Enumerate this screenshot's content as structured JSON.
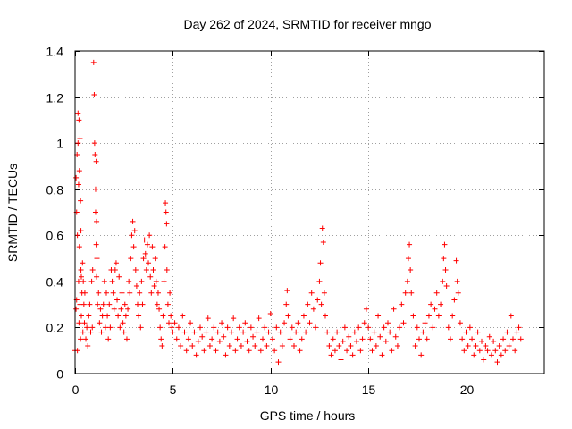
{
  "chart_data": {
    "type": "scatter",
    "title": "Day 262 of 2024, SRMTID for receiver mngo",
    "xlabel": "GPS time / hours",
    "ylabel": "SRMTID / TECUs",
    "xlim": [
      0,
      24
    ],
    "ylim": [
      0,
      1.4
    ],
    "xticks": [
      0,
      5,
      10,
      15,
      20
    ],
    "xtick_labels": [
      "0",
      "5",
      "10",
      "15",
      "20"
    ],
    "yticks": [
      0,
      0.2,
      0.4,
      0.6,
      0.8,
      1,
      1.2,
      1.4
    ],
    "ytick_labels": [
      "0",
      "0.2",
      "0.4",
      "0.6",
      "0.8",
      "1",
      "1.2",
      "1.4"
    ],
    "grid": true,
    "marker": "+",
    "series": [
      {
        "name": "SRMTID",
        "color": "#ff0000",
        "points": [
          [
            0.0,
            0.1
          ],
          [
            0.05,
            0.28
          ],
          [
            0.05,
            0.85
          ],
          [
            0.08,
            0.32
          ],
          [
            0.08,
            0.7
          ],
          [
            0.1,
            0.95
          ],
          [
            0.12,
            0.6
          ],
          [
            0.12,
            0.1
          ],
          [
            0.15,
            1.0
          ],
          [
            0.15,
            1.13
          ],
          [
            0.18,
            0.82
          ],
          [
            0.18,
            0.4
          ],
          [
            0.2,
            1.1
          ],
          [
            0.2,
            0.22
          ],
          [
            0.22,
            0.88
          ],
          [
            0.22,
            0.55
          ],
          [
            0.25,
            1.02
          ],
          [
            0.25,
            0.3
          ],
          [
            0.28,
            0.75
          ],
          [
            0.28,
            0.15
          ],
          [
            0.3,
            0.62
          ],
          [
            0.3,
            0.45
          ],
          [
            0.32,
            0.42
          ],
          [
            0.32,
            0.25
          ],
          [
            0.35,
            0.35
          ],
          [
            0.38,
            0.48
          ],
          [
            0.4,
            0.18
          ],
          [
            0.42,
            0.4
          ],
          [
            0.45,
            0.3
          ],
          [
            0.48,
            0.22
          ],
          [
            0.5,
            0.35
          ],
          [
            0.55,
            0.15
          ],
          [
            0.6,
            0.2
          ],
          [
            0.65,
            0.12
          ],
          [
            0.7,
            0.25
          ],
          [
            0.75,
            0.3
          ],
          [
            0.8,
            0.18
          ],
          [
            0.85,
            0.4
          ],
          [
            0.88,
            0.2
          ],
          [
            0.9,
            0.45
          ],
          [
            0.95,
            1.35
          ],
          [
            0.98,
            1.21
          ],
          [
            1.0,
            1.0
          ],
          [
            1.02,
            0.95
          ],
          [
            1.05,
            0.8
          ],
          [
            1.05,
            0.7
          ],
          [
            1.08,
            0.92
          ],
          [
            1.08,
            0.56
          ],
          [
            1.1,
            0.66
          ],
          [
            1.1,
            0.42
          ],
          [
            1.12,
            0.5
          ],
          [
            1.15,
            0.3
          ],
          [
            1.2,
            0.35
          ],
          [
            1.25,
            0.22
          ],
          [
            1.3,
            0.28
          ],
          [
            1.35,
            0.18
          ],
          [
            1.4,
            0.25
          ],
          [
            1.45,
            0.3
          ],
          [
            1.5,
            0.4
          ],
          [
            1.55,
            0.2
          ],
          [
            1.6,
            0.35
          ],
          [
            1.65,
            0.25
          ],
          [
            1.7,
            0.15
          ],
          [
            1.75,
            0.3
          ],
          [
            1.8,
            0.2
          ],
          [
            1.85,
            0.45
          ],
          [
            1.9,
            0.4
          ],
          [
            1.95,
            0.35
          ],
          [
            2.0,
            0.28
          ],
          [
            2.05,
            0.45
          ],
          [
            2.1,
            0.48
          ],
          [
            2.15,
            0.32
          ],
          [
            2.2,
            0.25
          ],
          [
            2.25,
            0.42
          ],
          [
            2.3,
            0.2
          ],
          [
            2.35,
            0.28
          ],
          [
            2.4,
            0.35
          ],
          [
            2.45,
            0.22
          ],
          [
            2.5,
            0.18
          ],
          [
            2.55,
            0.3
          ],
          [
            2.6,
            0.25
          ],
          [
            2.65,
            0.15
          ],
          [
            2.7,
            0.28
          ],
          [
            2.75,
            0.4
          ],
          [
            2.8,
            0.35
          ],
          [
            2.85,
            0.5
          ],
          [
            2.9,
            0.6
          ],
          [
            2.95,
            0.66
          ],
          [
            3.0,
            0.55
          ],
          [
            3.05,
            0.62
          ],
          [
            3.1,
            0.45
          ],
          [
            3.15,
            0.38
          ],
          [
            3.2,
            0.3
          ],
          [
            3.25,
            0.25
          ],
          [
            3.3,
            0.35
          ],
          [
            3.35,
            0.2
          ],
          [
            3.4,
            0.4
          ],
          [
            3.45,
            0.3
          ],
          [
            3.5,
            0.5
          ],
          [
            3.55,
            0.58
          ],
          [
            3.6,
            0.52
          ],
          [
            3.65,
            0.45
          ],
          [
            3.7,
            0.56
          ],
          [
            3.75,
            0.48
          ],
          [
            3.8,
            0.6
          ],
          [
            3.85,
            0.42
          ],
          [
            3.9,
            0.35
          ],
          [
            3.95,
            0.55
          ],
          [
            4.0,
            0.45
          ],
          [
            4.05,
            0.38
          ],
          [
            4.1,
            0.5
          ],
          [
            4.15,
            0.4
          ],
          [
            4.2,
            0.3
          ],
          [
            4.25,
            0.35
          ],
          [
            4.3,
            0.28
          ],
          [
            4.35,
            0.2
          ],
          [
            4.4,
            0.15
          ],
          [
            4.45,
            0.12
          ],
          [
            4.5,
            0.25
          ],
          [
            4.55,
            0.4
          ],
          [
            4.6,
            0.55
          ],
          [
            4.62,
            0.74
          ],
          [
            4.65,
            0.7
          ],
          [
            4.68,
            0.65
          ],
          [
            4.7,
            0.45
          ],
          [
            4.75,
            0.3
          ],
          [
            4.8,
            0.22
          ],
          [
            4.85,
            0.35
          ],
          [
            4.9,
            0.25
          ],
          [
            4.95,
            0.2
          ],
          [
            5.0,
            0.18
          ],
          [
            5.1,
            0.22
          ],
          [
            5.2,
            0.15
          ],
          [
            5.3,
            0.2
          ],
          [
            5.4,
            0.12
          ],
          [
            5.5,
            0.25
          ],
          [
            5.6,
            0.18
          ],
          [
            5.7,
            0.1
          ],
          [
            5.8,
            0.15
          ],
          [
            5.9,
            0.22
          ],
          [
            6.0,
            0.12
          ],
          [
            6.1,
            0.18
          ],
          [
            6.2,
            0.08
          ],
          [
            6.3,
            0.14
          ],
          [
            6.4,
            0.2
          ],
          [
            6.5,
            0.16
          ],
          [
            6.6,
            0.1
          ],
          [
            6.7,
            0.18
          ],
          [
            6.8,
            0.24
          ],
          [
            6.9,
            0.12
          ],
          [
            7.0,
            0.15
          ],
          [
            7.1,
            0.2
          ],
          [
            7.2,
            0.1
          ],
          [
            7.3,
            0.18
          ],
          [
            7.4,
            0.14
          ],
          [
            7.5,
            0.22
          ],
          [
            7.6,
            0.16
          ],
          [
            7.7,
            0.08
          ],
          [
            7.8,
            0.2
          ],
          [
            7.9,
            0.12
          ],
          [
            8.0,
            0.18
          ],
          [
            8.1,
            0.24
          ],
          [
            8.2,
            0.1
          ],
          [
            8.3,
            0.15
          ],
          [
            8.4,
            0.2
          ],
          [
            8.5,
            0.12
          ],
          [
            8.6,
            0.18
          ],
          [
            8.7,
            0.22
          ],
          [
            8.8,
            0.14
          ],
          [
            8.9,
            0.1
          ],
          [
            9.0,
            0.2
          ],
          [
            9.1,
            0.16
          ],
          [
            9.2,
            0.12
          ],
          [
            9.3,
            0.18
          ],
          [
            9.4,
            0.24
          ],
          [
            9.5,
            0.1
          ],
          [
            9.6,
            0.15
          ],
          [
            9.7,
            0.2
          ],
          [
            9.8,
            0.12
          ],
          [
            9.9,
            0.18
          ],
          [
            10.0,
            0.26
          ],
          [
            10.1,
            0.15
          ],
          [
            10.2,
            0.1
          ],
          [
            10.3,
            0.2
          ],
          [
            10.4,
            0.05
          ],
          [
            10.5,
            0.18
          ],
          [
            10.6,
            0.12
          ],
          [
            10.7,
            0.22
          ],
          [
            10.8,
            0.3
          ],
          [
            10.85,
            0.36
          ],
          [
            10.9,
            0.25
          ],
          [
            11.0,
            0.15
          ],
          [
            11.1,
            0.2
          ],
          [
            11.2,
            0.12
          ],
          [
            11.3,
            0.18
          ],
          [
            11.4,
            0.22
          ],
          [
            11.5,
            0.1
          ],
          [
            11.6,
            0.15
          ],
          [
            11.7,
            0.25
          ],
          [
            11.8,
            0.18
          ],
          [
            11.9,
            0.3
          ],
          [
            12.0,
            0.22
          ],
          [
            12.1,
            0.35
          ],
          [
            12.2,
            0.28
          ],
          [
            12.3,
            0.2
          ],
          [
            12.4,
            0.32
          ],
          [
            12.5,
            0.4
          ],
          [
            12.55,
            0.48
          ],
          [
            12.6,
            0.3
          ],
          [
            12.65,
            0.63
          ],
          [
            12.7,
            0.57
          ],
          [
            12.75,
            0.35
          ],
          [
            12.8,
            0.25
          ],
          [
            12.9,
            0.18
          ],
          [
            13.0,
            0.12
          ],
          [
            13.1,
            0.08
          ],
          [
            13.2,
            0.15
          ],
          [
            13.3,
            0.1
          ],
          [
            13.4,
            0.18
          ],
          [
            13.5,
            0.12
          ],
          [
            13.6,
            0.06
          ],
          [
            13.7,
            0.14
          ],
          [
            13.8,
            0.2
          ],
          [
            13.9,
            0.1
          ],
          [
            14.0,
            0.16
          ],
          [
            14.1,
            0.12
          ],
          [
            14.2,
            0.08
          ],
          [
            14.3,
            0.18
          ],
          [
            14.4,
            0.14
          ],
          [
            14.5,
            0.2
          ],
          [
            14.6,
            0.1
          ],
          [
            14.7,
            0.15
          ],
          [
            14.8,
            0.22
          ],
          [
            14.9,
            0.28
          ],
          [
            15.0,
            0.2
          ],
          [
            15.1,
            0.15
          ],
          [
            15.2,
            0.1
          ],
          [
            15.3,
            0.18
          ],
          [
            15.4,
            0.12
          ],
          [
            15.5,
            0.25
          ],
          [
            15.6,
            0.16
          ],
          [
            15.7,
            0.08
          ],
          [
            15.8,
            0.2
          ],
          [
            15.9,
            0.14
          ],
          [
            16.0,
            0.22
          ],
          [
            16.1,
            0.18
          ],
          [
            16.2,
            0.1
          ],
          [
            16.3,
            0.28
          ],
          [
            16.4,
            0.16
          ],
          [
            16.5,
            0.12
          ],
          [
            16.6,
            0.2
          ],
          [
            16.7,
            0.3
          ],
          [
            16.8,
            0.22
          ],
          [
            16.9,
            0.35
          ],
          [
            17.0,
            0.4
          ],
          [
            17.05,
            0.5
          ],
          [
            17.1,
            0.56
          ],
          [
            17.15,
            0.45
          ],
          [
            17.2,
            0.35
          ],
          [
            17.3,
            0.25
          ],
          [
            17.4,
            0.12
          ],
          [
            17.5,
            0.2
          ],
          [
            17.6,
            0.15
          ],
          [
            17.7,
            0.08
          ],
          [
            17.8,
            0.18
          ],
          [
            17.9,
            0.22
          ],
          [
            18.0,
            0.15
          ],
          [
            18.1,
            0.25
          ],
          [
            18.2,
            0.3
          ],
          [
            18.3,
            0.2
          ],
          [
            18.4,
            0.28
          ],
          [
            18.5,
            0.35
          ],
          [
            18.6,
            0.25
          ],
          [
            18.7,
            0.3
          ],
          [
            18.8,
            0.4
          ],
          [
            18.85,
            0.5
          ],
          [
            18.9,
            0.56
          ],
          [
            18.95,
            0.45
          ],
          [
            19.0,
            0.38
          ],
          [
            19.1,
            0.2
          ],
          [
            19.2,
            0.15
          ],
          [
            19.3,
            0.25
          ],
          [
            19.4,
            0.32
          ],
          [
            19.5,
            0.49
          ],
          [
            19.55,
            0.4
          ],
          [
            19.6,
            0.35
          ],
          [
            19.7,
            0.22
          ],
          [
            19.8,
            0.15
          ],
          [
            19.9,
            0.1
          ],
          [
            20.0,
            0.18
          ],
          [
            20.1,
            0.12
          ],
          [
            20.2,
            0.2
          ],
          [
            20.3,
            0.15
          ],
          [
            20.4,
            0.08
          ],
          [
            20.5,
            0.12
          ],
          [
            20.6,
            0.18
          ],
          [
            20.7,
            0.1
          ],
          [
            20.8,
            0.14
          ],
          [
            20.9,
            0.06
          ],
          [
            21.0,
            0.12
          ],
          [
            21.1,
            0.1
          ],
          [
            21.2,
            0.16
          ],
          [
            21.3,
            0.08
          ],
          [
            21.4,
            0.14
          ],
          [
            21.5,
            0.1
          ],
          [
            21.6,
            0.05
          ],
          [
            21.7,
            0.12
          ],
          [
            21.8,
            0.08
          ],
          [
            21.9,
            0.15
          ],
          [
            22.0,
            0.1
          ],
          [
            22.1,
            0.18
          ],
          [
            22.2,
            0.12
          ],
          [
            22.3,
            0.25
          ],
          [
            22.4,
            0.15
          ],
          [
            22.5,
            0.1
          ],
          [
            22.6,
            0.18
          ],
          [
            22.7,
            0.2
          ],
          [
            22.8,
            0.15
          ]
        ]
      }
    ]
  }
}
